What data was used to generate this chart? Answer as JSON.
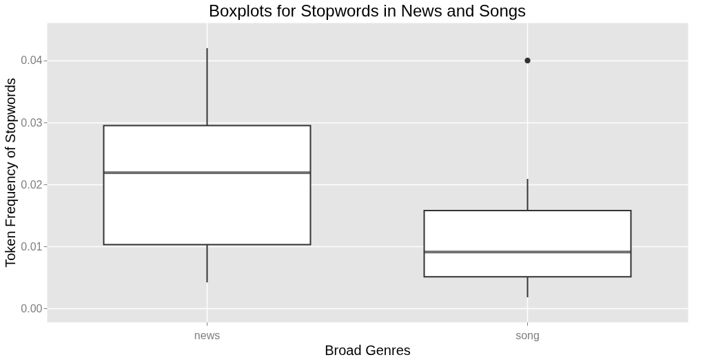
{
  "chart_data": {
    "type": "box",
    "title": "Boxplots for Stopwords in News and Songs",
    "xlabel": "Broad Genres",
    "ylabel": "Token Frequency of Stopwords",
    "categories": [
      "news",
      "song"
    ],
    "boxes": [
      {
        "low": 0.0042,
        "q1": 0.0103,
        "median": 0.0219,
        "q3": 0.0295,
        "high": 0.042
      },
      {
        "low": 0.0018,
        "q1": 0.0051,
        "median": 0.0091,
        "q3": 0.0158,
        "high": 0.0209,
        "outliers": [
          0.04
        ]
      }
    ],
    "ylim": [
      -0.0022,
      0.0461
    ],
    "yticks": [
      {
        "value": 0,
        "label": "0.00"
      },
      {
        "value": 0.01,
        "label": "0.01"
      },
      {
        "value": 0.02,
        "label": "0.02"
      },
      {
        "value": 0.03,
        "label": "0.03"
      },
      {
        "value": 0.04,
        "label": "0.04"
      }
    ],
    "grid": true
  }
}
